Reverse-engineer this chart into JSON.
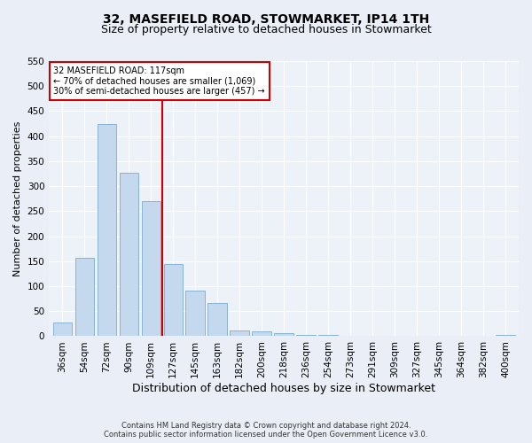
{
  "title": "32, MASEFIELD ROAD, STOWMARKET, IP14 1TH",
  "subtitle": "Size of property relative to detached houses in Stowmarket",
  "xlabel": "Distribution of detached houses by size in Stowmarket",
  "ylabel": "Number of detached properties",
  "categories": [
    "36sqm",
    "54sqm",
    "72sqm",
    "90sqm",
    "109sqm",
    "127sqm",
    "145sqm",
    "163sqm",
    "182sqm",
    "200sqm",
    "218sqm",
    "236sqm",
    "254sqm",
    "273sqm",
    "291sqm",
    "309sqm",
    "327sqm",
    "345sqm",
    "364sqm",
    "382sqm",
    "400sqm"
  ],
  "values": [
    28,
    157,
    425,
    327,
    270,
    145,
    92,
    67,
    12,
    9,
    6,
    3,
    2,
    1,
    1,
    0,
    0,
    0,
    0,
    0,
    2
  ],
  "bar_color": "#c5d9ee",
  "bar_edge_color": "#7aabcf",
  "vline_x": 4.5,
  "vline_color": "#cc0000",
  "annotation_line1": "32 MASEFIELD ROAD: 117sqm",
  "annotation_line2": "← 70% of detached houses are smaller (1,069)",
  "annotation_line3": "30% of semi-detached houses are larger (457) →",
  "annotation_box_color": "#ffffff",
  "annotation_box_edge": "#cc0000",
  "ylim": [
    0,
    550
  ],
  "yticks": [
    0,
    50,
    100,
    150,
    200,
    250,
    300,
    350,
    400,
    450,
    500,
    550
  ],
  "footer": "Contains HM Land Registry data © Crown copyright and database right 2024.\nContains public sector information licensed under the Open Government Licence v3.0.",
  "bg_color": "#eaeff7",
  "plot_bg": "#edf1f8",
  "title_fontsize": 10,
  "subtitle_fontsize": 9,
  "axis_label_fontsize": 8,
  "tick_fontsize": 7.5,
  "footer_fontsize": 6
}
